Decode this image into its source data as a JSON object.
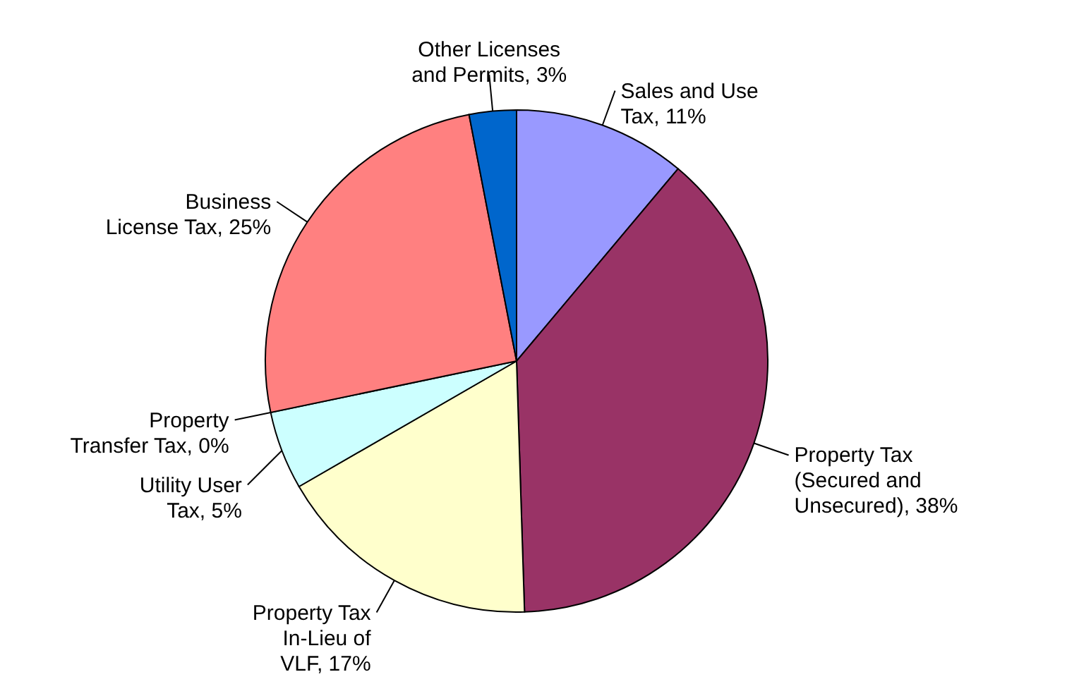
{
  "chart_data": {
    "type": "pie",
    "categories": [
      "Sales and Use Tax",
      "Property Tax (Secured and Unsecured)",
      "Property Tax In-Lieu of VLF",
      "Utility User Tax",
      "Property Transfer Tax",
      "Business License Tax",
      "Other Licenses and Permits"
    ],
    "values": [
      11,
      38,
      17,
      5,
      0,
      25,
      3
    ],
    "value_labels": [
      "11%",
      "38%",
      "17%",
      "5%",
      "0%",
      "25%",
      "3%"
    ],
    "colors": [
      "#9999ff",
      "#993366",
      "#ffffcc",
      "#ccffff",
      "#660066",
      "#ff8080",
      "#0066cc"
    ]
  }
}
